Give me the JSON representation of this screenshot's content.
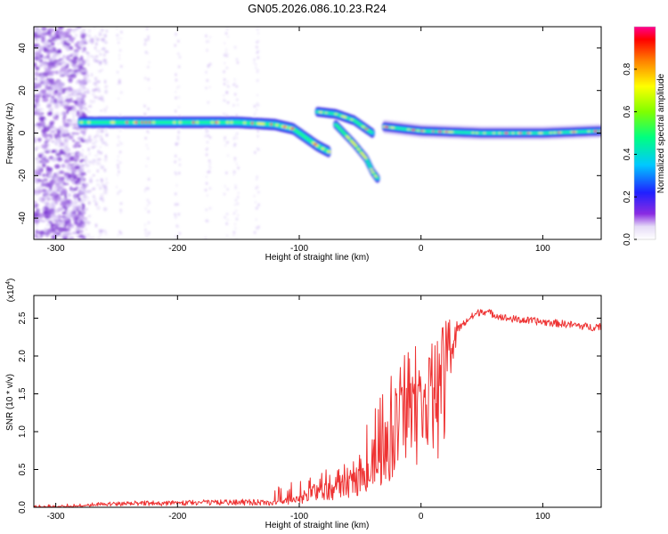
{
  "title": "GN05.2026.086.10.23.R24",
  "chart_data": [
    {
      "type": "heatmap",
      "name": "spectrogram",
      "xlabel": "Height of straight line (km)",
      "ylabel": "Frequency (Hz)",
      "xlim": [
        -318,
        148
      ],
      "ylim": [
        -50,
        50
      ],
      "xticks": [
        -300,
        -200,
        -100,
        0,
        100
      ],
      "xtick_labels": [
        "-300",
        "-200",
        "-100",
        "0",
        "100"
      ],
      "yticks": [
        -40,
        -20,
        0,
        20,
        40
      ],
      "ytick_labels": [
        "-40",
        "-20",
        "0",
        "20",
        "40"
      ],
      "colorbar": {
        "label": "Normalized spectral amplitude",
        "range": [
          0,
          1
        ],
        "ticks": [
          0,
          0.2,
          0.4,
          0.6,
          0.8
        ],
        "tick_labels": [
          "0.0",
          "0.2",
          "0.4",
          "0.6",
          "0.8"
        ]
      },
      "traces": [
        {
          "name": "main-band",
          "x": [
            -280,
            -250,
            -200,
            -150,
            -120,
            -105,
            -95,
            -85,
            -75
          ],
          "y": [
            5,
            5,
            5,
            5,
            4,
            2,
            -2,
            -6,
            -9
          ]
        },
        {
          "name": "upper-branch",
          "x": [
            -85,
            -70,
            -55,
            -45,
            -40
          ],
          "y": [
            10,
            9,
            6,
            2,
            0
          ]
        },
        {
          "name": "lower-branch",
          "x": [
            -70,
            -55,
            -45,
            -40,
            -35
          ],
          "y": [
            4,
            -5,
            -12,
            -18,
            -22
          ]
        },
        {
          "name": "post-zero-band",
          "x": [
            -30,
            0,
            50,
            100,
            148
          ],
          "y": [
            3,
            1,
            0,
            0,
            1
          ]
        }
      ]
    },
    {
      "type": "line",
      "name": "snr",
      "xlabel": "Height of straight line (km)",
      "ylabel": "SNR (10 * v/v)",
      "scale_note": "(x10",
      "scale_exp": "4",
      "scale_close": ")",
      "xlim": [
        -318,
        148
      ],
      "ylim": [
        0,
        2.8
      ],
      "xticks": [
        -300,
        -200,
        -100,
        0,
        100
      ],
      "xtick_labels": [
        "-300",
        "-200",
        "-100",
        "0",
        "100"
      ],
      "yticks": [
        0,
        0.5,
        1,
        1.5,
        2,
        2.5
      ],
      "ytick_labels": [
        "0.0",
        "0.5",
        "1.0",
        "1.5",
        "2.0",
        "2.5"
      ],
      "series": [
        {
          "name": "SNR",
          "color": "#ee3333",
          "x": [
            -318,
            -280,
            -250,
            -200,
            -150,
            -130,
            -120,
            -100,
            -90,
            -80,
            -70,
            -60,
            -50,
            -40,
            -30,
            -25,
            -20,
            -15,
            -10,
            -5,
            0,
            5,
            10,
            20,
            30,
            40,
            50,
            60,
            70,
            80,
            100,
            120,
            140,
            148
          ],
          "y": [
            0.0,
            0.02,
            0.05,
            0.06,
            0.08,
            0.07,
            0.06,
            0.12,
            0.22,
            0.25,
            0.26,
            0.35,
            0.45,
            0.55,
            0.8,
            1.0,
            1.25,
            1.4,
            1.45,
            1.5,
            1.5,
            1.6,
            1.75,
            2.0,
            2.35,
            2.5,
            2.6,
            2.55,
            2.5,
            2.48,
            2.45,
            2.42,
            2.38,
            2.4
          ]
        }
      ]
    }
  ],
  "colors": {
    "snr_line": "#ee3333",
    "axis": "#000000"
  }
}
